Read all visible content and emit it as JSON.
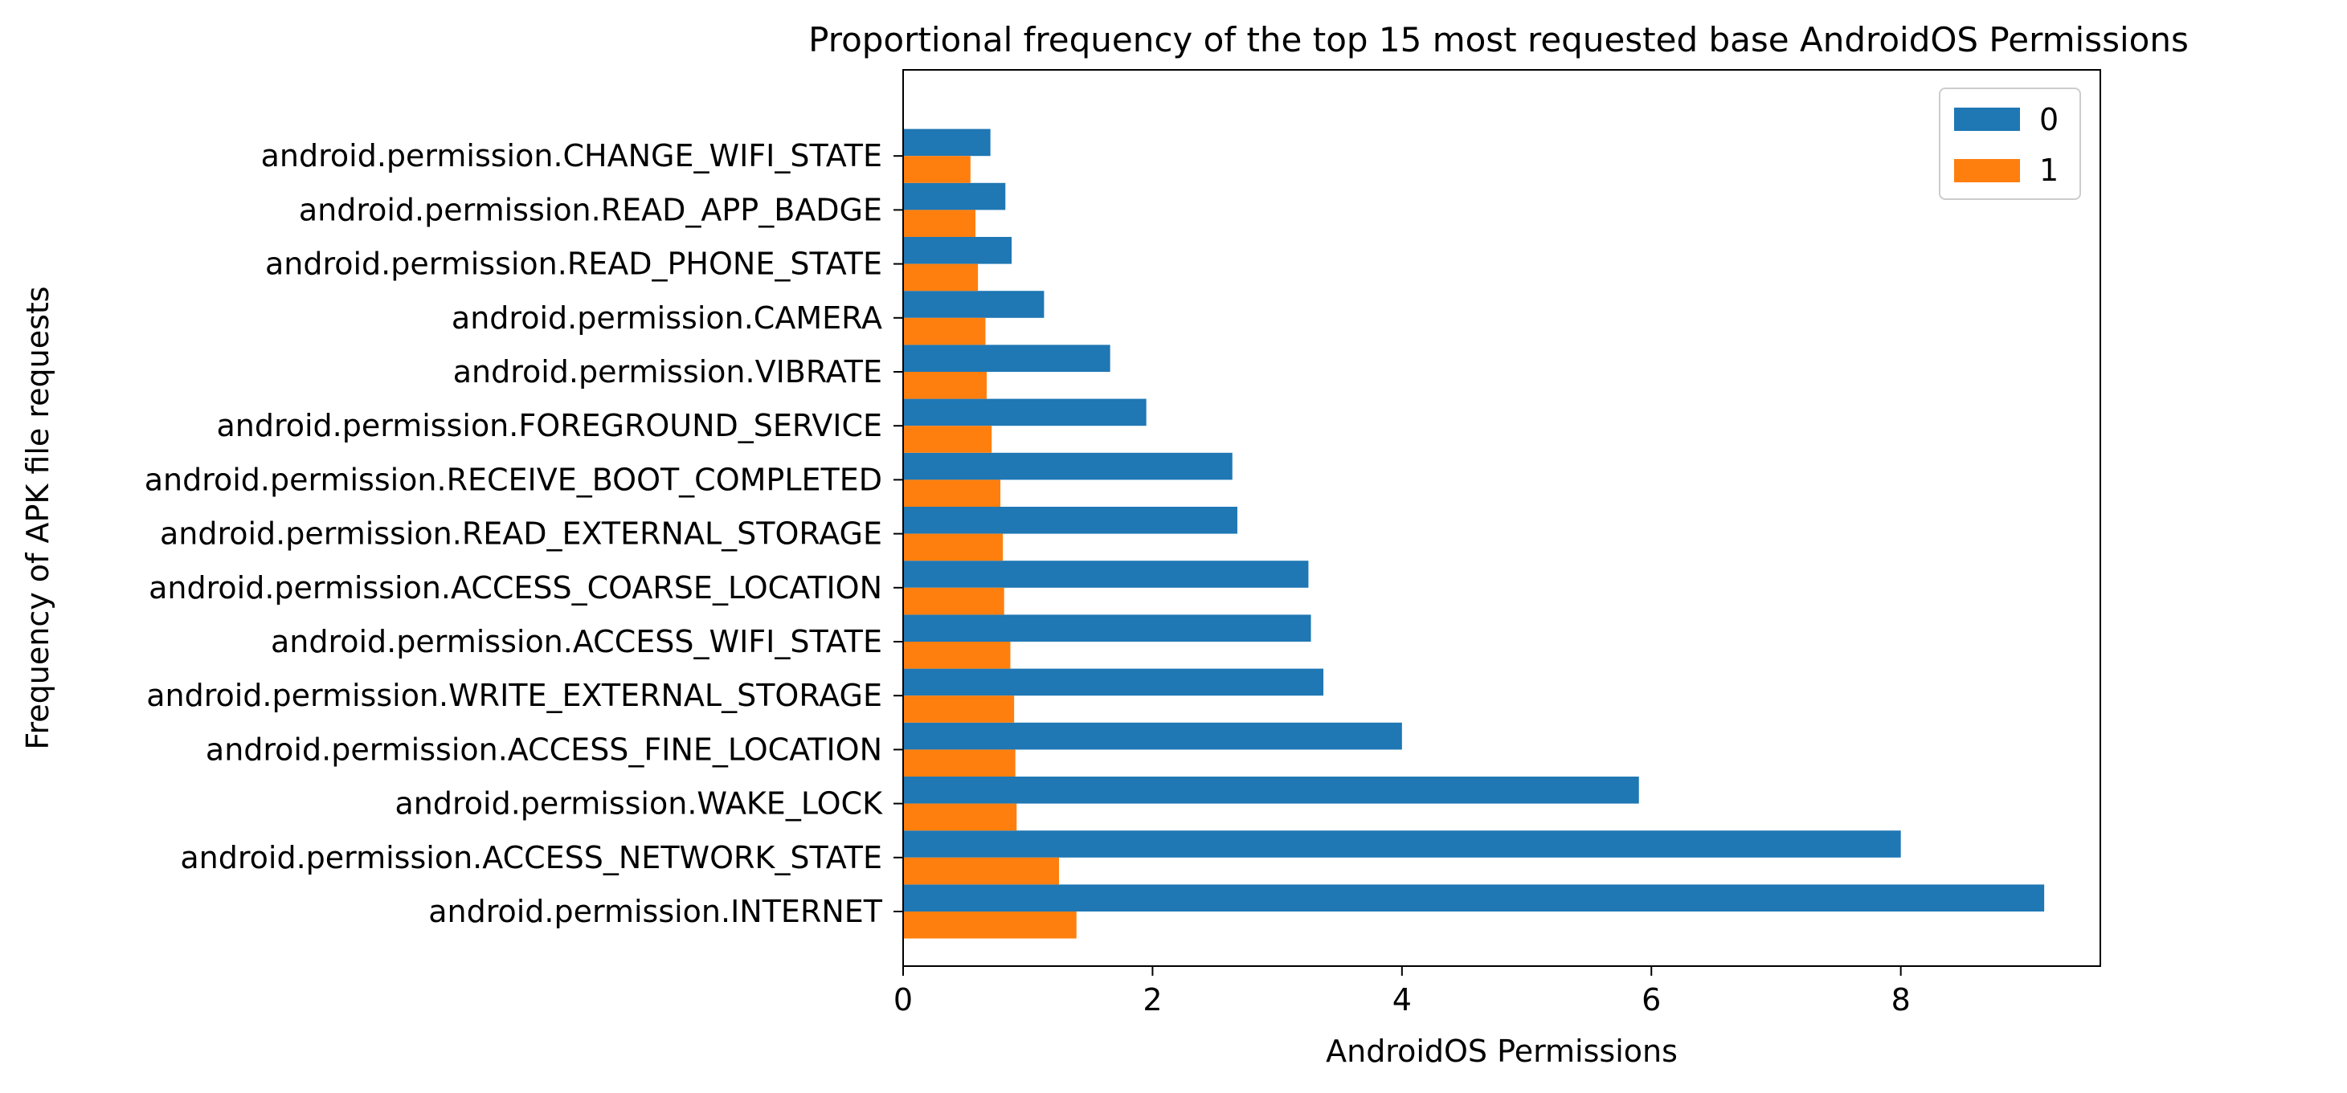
{
  "chart_data": {
    "type": "bar",
    "orientation": "horizontal",
    "title": "Proportional frequency of the top 15 most requested base AndroidOS Permissions",
    "xlabel": "AndroidOS Permissions",
    "ylabel": "Frequency of APK file requests",
    "xlim": [
      0,
      9.6
    ],
    "xticks": [
      0,
      2,
      4,
      6,
      8
    ],
    "grid": false,
    "legend_position": "top-right",
    "categories": [
      "android.permission.INTERNET",
      "android.permission.ACCESS_NETWORK_STATE",
      "android.permission.WAKE_LOCK",
      "android.permission.ACCESS_FINE_LOCATION",
      "android.permission.WRITE_EXTERNAL_STORAGE",
      "android.permission.ACCESS_WIFI_STATE",
      "android.permission.ACCESS_COARSE_LOCATION",
      "android.permission.READ_EXTERNAL_STORAGE",
      "android.permission.RECEIVE_BOOT_COMPLETED",
      "android.permission.FOREGROUND_SERVICE",
      "android.permission.VIBRATE",
      "android.permission.CAMERA",
      "android.permission.READ_PHONE_STATE",
      "android.permission.READ_APP_BADGE",
      "android.permission.CHANGE_WIFI_STATE"
    ],
    "series": [
      {
        "name": "0",
        "color": "#1f77b4",
        "values": [
          9.15,
          8.0,
          5.9,
          4.0,
          3.37,
          3.27,
          3.25,
          2.68,
          2.64,
          1.95,
          1.66,
          1.13,
          0.87,
          0.82,
          0.7
        ]
      },
      {
        "name": "1",
        "color": "#ff7f0e",
        "values": [
          1.39,
          1.25,
          0.91,
          0.9,
          0.89,
          0.86,
          0.81,
          0.8,
          0.78,
          0.71,
          0.67,
          0.66,
          0.6,
          0.58,
          0.54
        ]
      }
    ]
  }
}
